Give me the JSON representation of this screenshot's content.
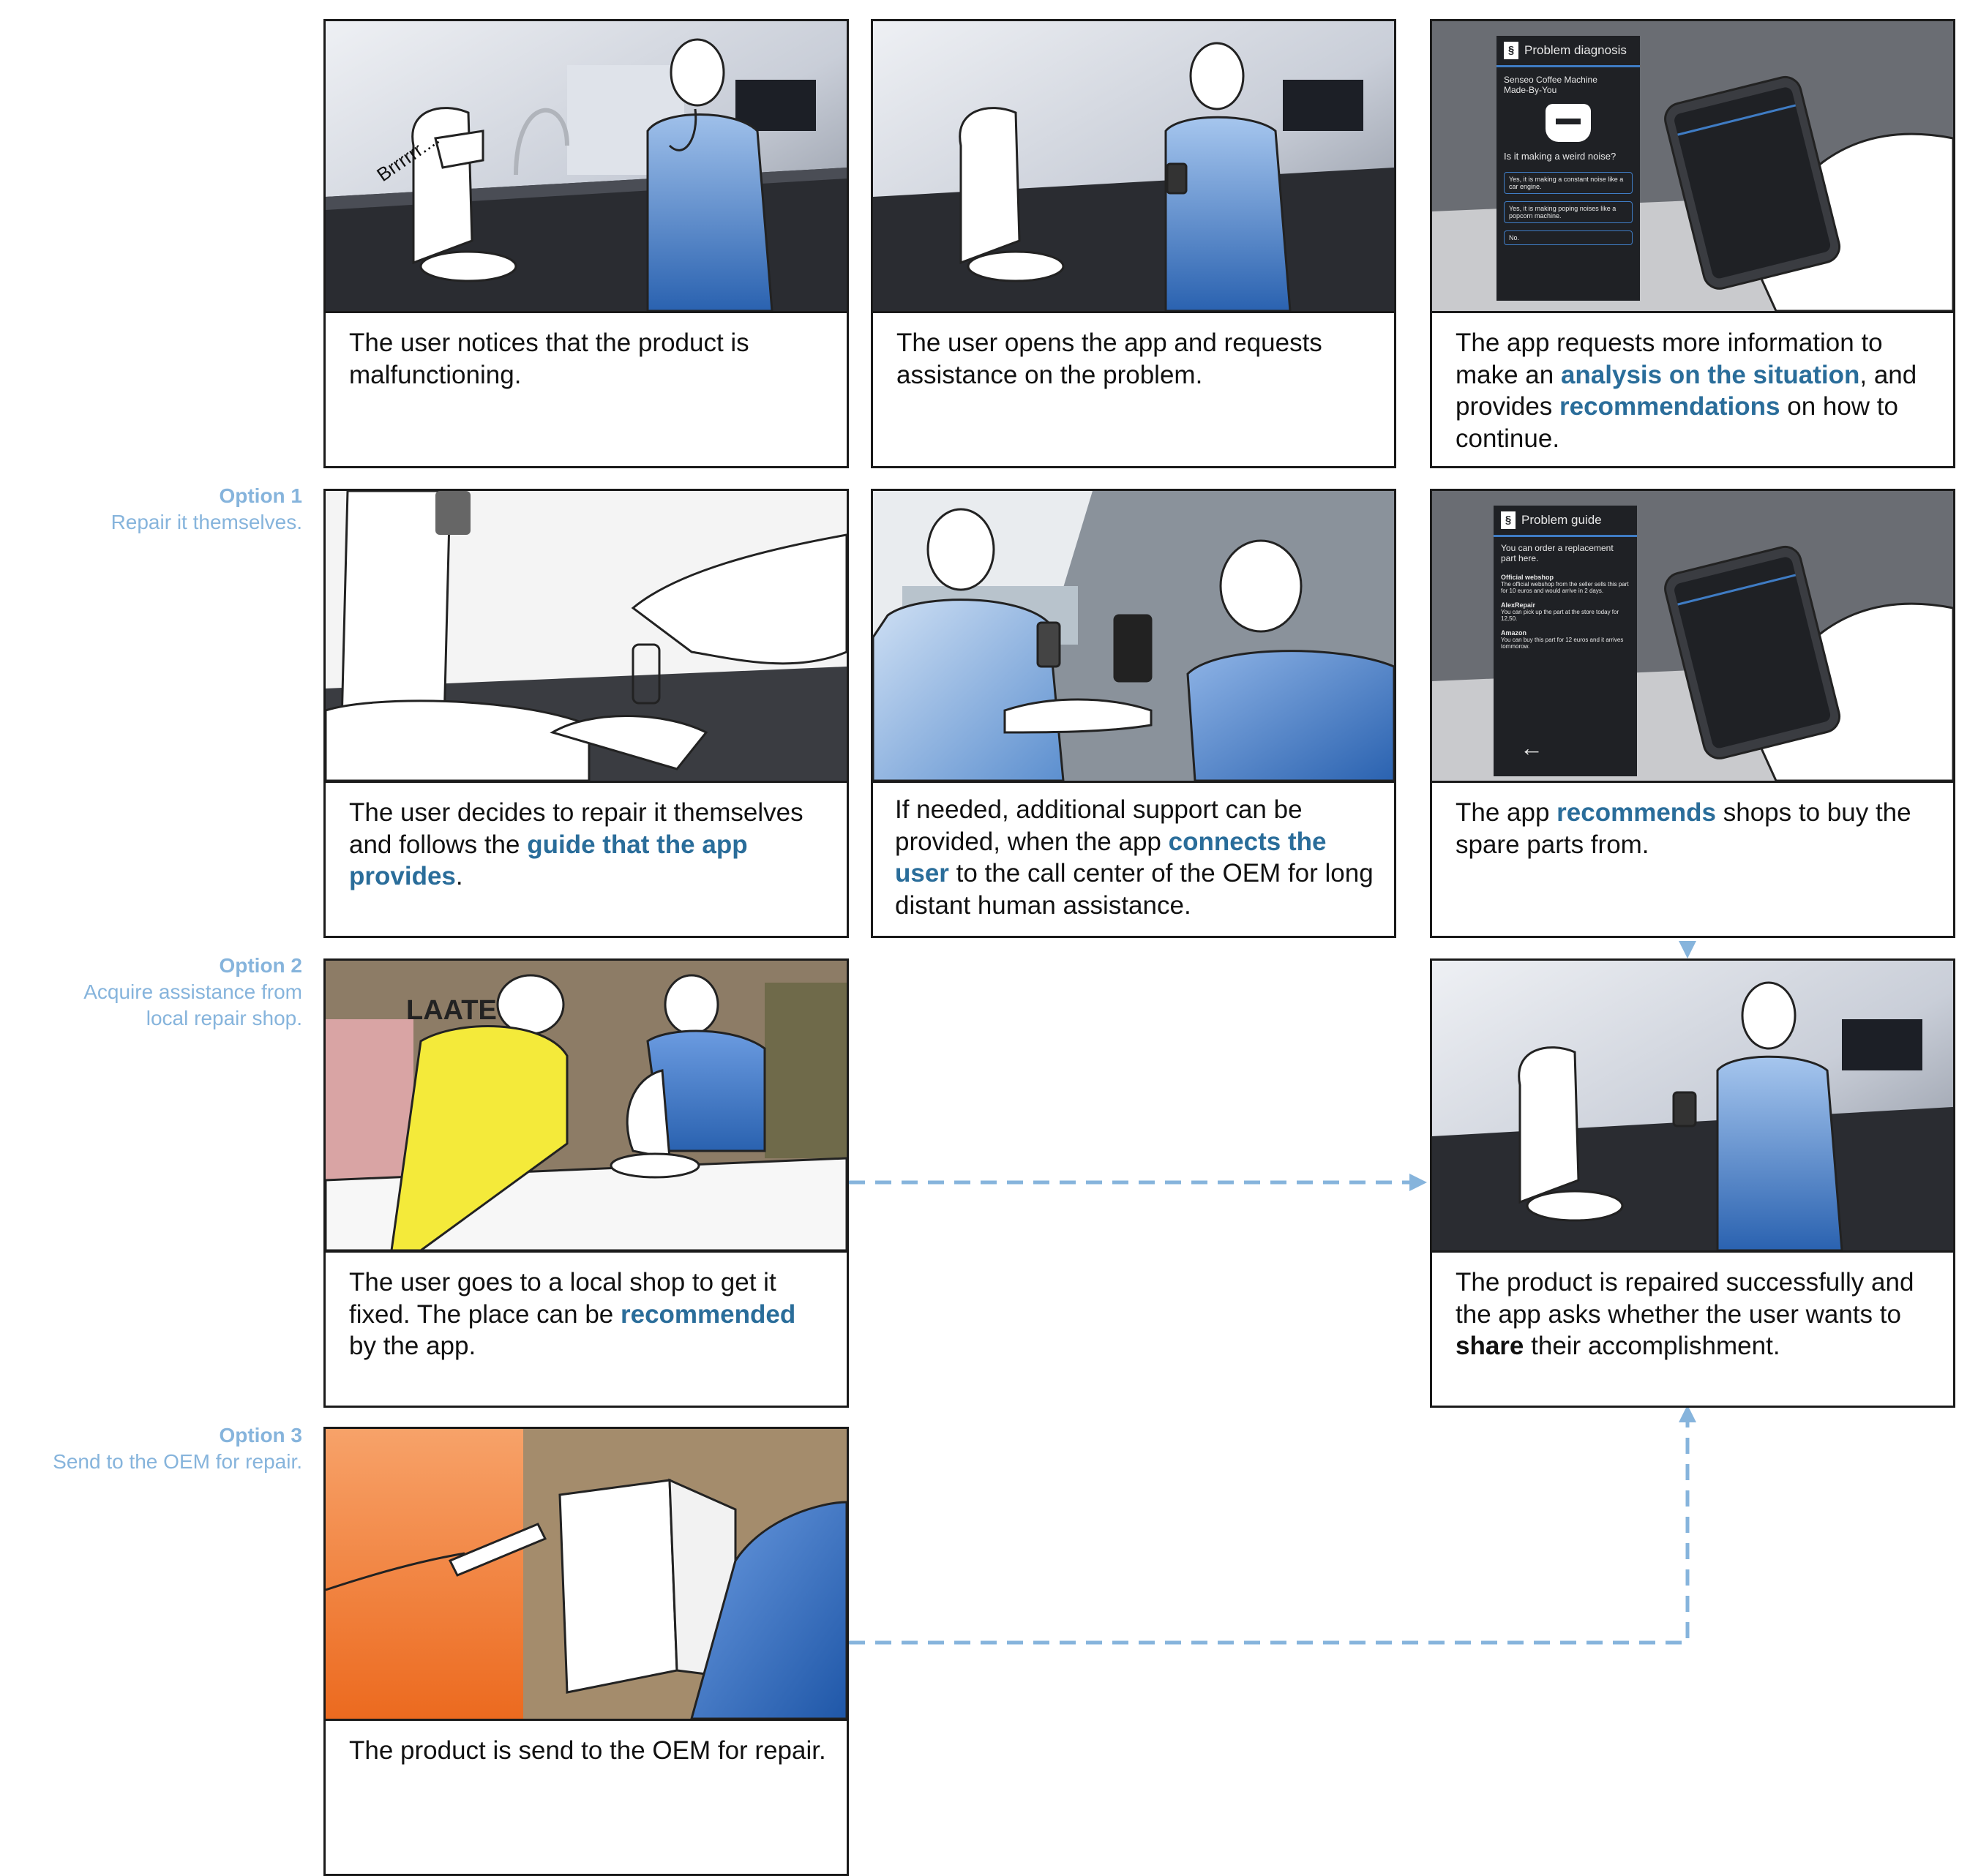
{
  "options": [
    {
      "title": "Option 1",
      "subtitle": "Repair it themselves."
    },
    {
      "title": "Option 2",
      "subtitle_line1": "Acquire assistance from",
      "subtitle_line2": "local repair shop."
    },
    {
      "title": "Option 3",
      "subtitle": "Send to the OEM for repair."
    }
  ],
  "panels": {
    "p1": {
      "sfx": "Brrrrrr....",
      "text": "The user notices that the product is malfunctioning."
    },
    "p2": {
      "text": "The user opens the app and requests assistance on the problem."
    },
    "p3": {
      "t1": "The app requests more information to make an ",
      "h1": "analysis on the situation",
      "t2": ", and provides ",
      "h2": "recommendations",
      "t3": " on how to continue.",
      "screen": {
        "title": "Problem diagnosis",
        "device_line1": "Senseo Coffee Machine",
        "device_line2": "Made-By-You",
        "question": "Is it making a weird noise?",
        "answers": [
          "Yes, it is making a constant noise like a car engine.",
          "Yes, it is making poping noises like a popcorn machine.",
          "No."
        ]
      }
    },
    "p4": {
      "t1": "The user decides to repair it themselves and follows the ",
      "h1": "guide that the app provides",
      "t2": "."
    },
    "p5": {
      "t1": "If needed, additional support can be provided, when the app ",
      "h1": "connects the user",
      "t2": " to the call center of the OEM for long distant human assistance."
    },
    "p6": {
      "t1": "The app ",
      "h1": "recommends",
      "t2": " shops to buy the spare parts from.",
      "screen": {
        "title": "Problem guide",
        "intro": "You can order a replacement part here.",
        "shops": [
          {
            "name": "Official webshop",
            "desc": "The official webshop from the seller sells this part for 10 euros and would arrive in 2 days."
          },
          {
            "name": "AlexRepair",
            "desc": "You can pick up the part at the store today for 12,50."
          },
          {
            "name": "Amazon",
            "desc": "You can buy this part for 12 euros and it arrives tommorow."
          }
        ],
        "back": "←"
      }
    },
    "p7": {
      "sign": "LAATE",
      "t1": "The user goes to a local shop to get it fixed. The place can be ",
      "h1": "recommended",
      "t2": " by the app."
    },
    "p8": {
      "t1": "The product is repaired successfully and the app asks whether the user wants to ",
      "s1": "share",
      "t2": " their accomplishment."
    },
    "p9": {
      "text": "The product is send to the OEM for repair."
    }
  },
  "colors": {
    "accent": "#2a6d9a",
    "option_label": "#86b4dc",
    "arrow": "#86b4dc",
    "blue_shirt": "#2f6db5",
    "yellow_shirt": "#f4ea3a",
    "orange_shirt": "#f07a2c"
  }
}
